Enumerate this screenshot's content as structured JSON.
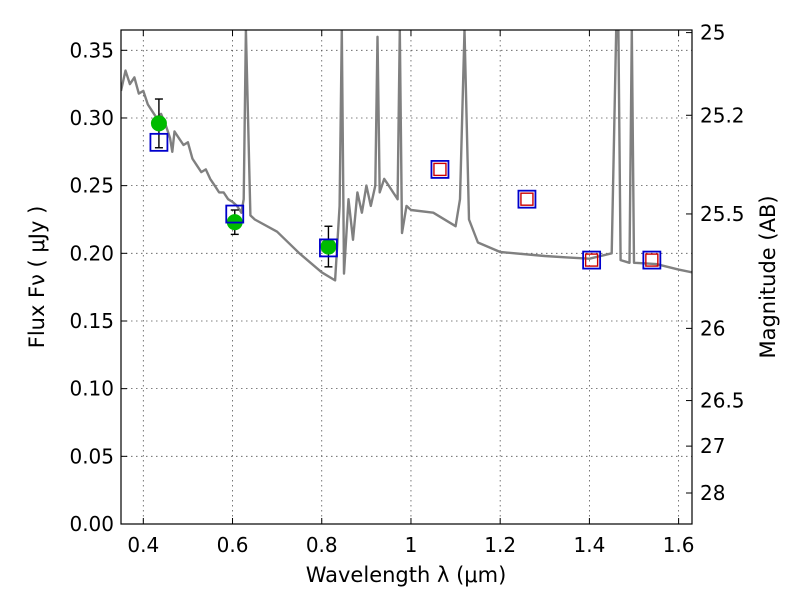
{
  "chart_data": {
    "type": "scatter",
    "xlabel": "Wavelength  λ (μm)",
    "ylabel": "Flux  Fν  ( μJy )",
    "ylabel_right": "Magnitude (AB)",
    "xlim": [
      0.35,
      1.63
    ],
    "ylim": [
      0.0,
      0.365
    ],
    "grid": true,
    "x_ticks": [
      {
        "v": 0.4,
        "label": "0.4"
      },
      {
        "v": 0.6,
        "label": "0.6"
      },
      {
        "v": 0.8,
        "label": "0.8"
      },
      {
        "v": 1.0,
        "label": "1"
      },
      {
        "v": 1.2,
        "label": "1.2"
      },
      {
        "v": 1.4,
        "label": "1.4"
      },
      {
        "v": 1.6,
        "label": "1.6"
      }
    ],
    "y_ticks": [
      {
        "v": 0.0,
        "label": "0.00"
      },
      {
        "v": 0.05,
        "label": "0.05"
      },
      {
        "v": 0.1,
        "label": "0.10"
      },
      {
        "v": 0.15,
        "label": "0.15"
      },
      {
        "v": 0.2,
        "label": "0.20"
      },
      {
        "v": 0.25,
        "label": "0.25"
      },
      {
        "v": 0.3,
        "label": "0.30"
      },
      {
        "v": 0.35,
        "label": "0.35"
      }
    ],
    "mag_ticks": [
      {
        "mag": 25,
        "label": "25"
      },
      {
        "mag": 25.2,
        "label": "25.2"
      },
      {
        "mag": 25.5,
        "label": "25.5"
      },
      {
        "mag": 26,
        "label": "26"
      },
      {
        "mag": 26.5,
        "label": "26.5"
      },
      {
        "mag": 27,
        "label": "27"
      },
      {
        "mag": 28,
        "label": "28"
      }
    ],
    "series": [
      {
        "kind": "line",
        "color": "#808080",
        "x": [
          0.35,
          0.36,
          0.37,
          0.38,
          0.39,
          0.4,
          0.41,
          0.42,
          0.43,
          0.44,
          0.45,
          0.46,
          0.465,
          0.47,
          0.48,
          0.49,
          0.5,
          0.51,
          0.52,
          0.53,
          0.54,
          0.55,
          0.56,
          0.57,
          0.58,
          0.59,
          0.6,
          0.61,
          0.62,
          0.625,
          0.63,
          0.64,
          0.65,
          0.7,
          0.75,
          0.8,
          0.83,
          0.84,
          0.845,
          0.85,
          0.86,
          0.87,
          0.88,
          0.89,
          0.9,
          0.91,
          0.92,
          0.925,
          0.93,
          0.94,
          0.95,
          0.96,
          0.97,
          0.975,
          0.98,
          0.99,
          1.0,
          1.05,
          1.1,
          1.11,
          1.12,
          1.13,
          1.15,
          1.2,
          1.3,
          1.35,
          1.4,
          1.45,
          1.46,
          1.465,
          1.47,
          1.49,
          1.495,
          1.5,
          1.55,
          1.6,
          1.63
        ],
        "y": [
          0.32,
          0.335,
          0.325,
          0.33,
          0.318,
          0.32,
          0.31,
          0.305,
          0.3,
          0.303,
          0.295,
          0.285,
          0.275,
          0.29,
          0.285,
          0.28,
          0.282,
          0.27,
          0.265,
          0.26,
          0.262,
          0.255,
          0.25,
          0.245,
          0.245,
          0.24,
          0.238,
          0.235,
          0.23,
          0.24,
          0.365,
          0.228,
          0.225,
          0.216,
          0.2,
          0.186,
          0.18,
          0.235,
          0.365,
          0.185,
          0.24,
          0.21,
          0.245,
          0.23,
          0.25,
          0.235,
          0.25,
          0.36,
          0.245,
          0.255,
          0.25,
          0.245,
          0.24,
          0.365,
          0.215,
          0.235,
          0.232,
          0.23,
          0.22,
          0.24,
          0.365,
          0.225,
          0.208,
          0.201,
          0.198,
          0.197,
          0.196,
          0.2,
          0.365,
          0.365,
          0.195,
          0.193,
          0.365,
          0.193,
          0.192,
          0.188,
          0.186
        ]
      },
      {
        "name": "",
        "kind": "errorbar",
        "marker": "circle",
        "color": "#00bb00",
        "x": [
          0.435,
          0.605,
          0.815
        ],
        "y": [
          0.296,
          0.223,
          0.205
        ],
        "yerr": [
          0.018,
          0.009,
          0.015
        ]
      },
      {
        "name": "",
        "kind": "scatter",
        "marker": "square-open",
        "color": "#0000cc",
        "x": [
          0.435,
          0.605,
          0.815,
          1.065,
          1.26,
          1.405,
          1.54
        ],
        "y": [
          0.282,
          0.229,
          0.204,
          0.262,
          0.24,
          0.195,
          0.195
        ]
      },
      {
        "name": "",
        "kind": "scatter",
        "marker": "square-open-small",
        "color": "#cc0000",
        "x": [
          1.065,
          1.26,
          1.405,
          1.54
        ],
        "y": [
          0.262,
          0.24,
          0.195,
          0.195
        ]
      }
    ]
  }
}
